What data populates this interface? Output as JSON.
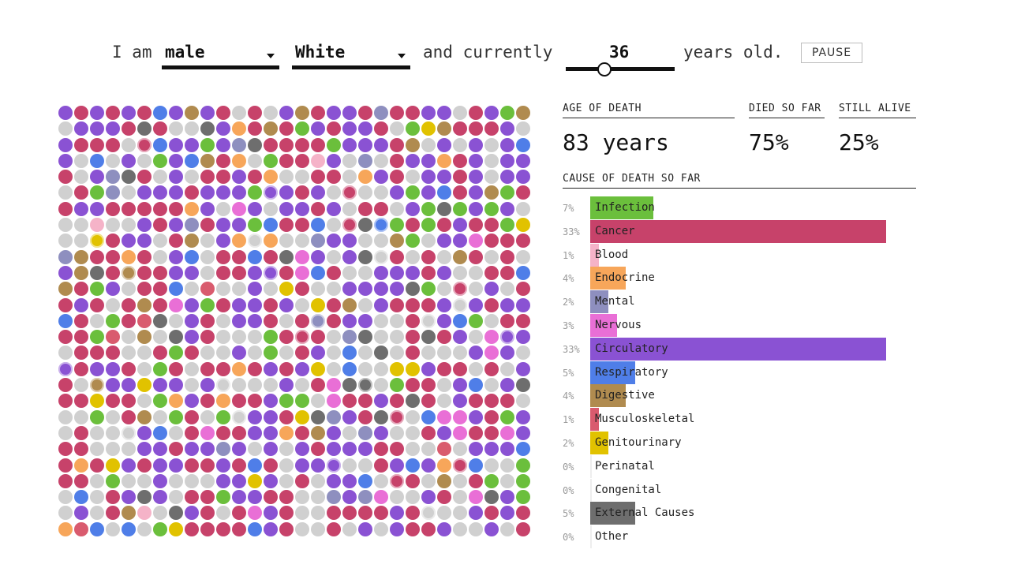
{
  "controls": {
    "prefix": "I am",
    "sex_value": "male",
    "race_value": "White",
    "middle_text": "and currently",
    "age_value": "36",
    "suffix": "years old.",
    "pause_label": "PAUSE",
    "age_slider_level": 0.36
  },
  "stats": {
    "age_of_death_label": "AGE OF DEATH",
    "age_of_death_value": "83 years",
    "died_label": "DIED SO FAR",
    "died_value": "75%",
    "alive_label": "STILL ALIVE",
    "alive_value": "25%"
  },
  "causes_title": "CAUSE OF DEATH SO FAR",
  "causes": [
    {
      "pct": 7,
      "pct_label": "7%",
      "label": "Infection",
      "color": "#6bbf3c"
    },
    {
      "pct": 33,
      "pct_label": "33%",
      "label": "Cancer",
      "color": "#c7426a"
    },
    {
      "pct": 1,
      "pct_label": "1%",
      "label": "Blood",
      "color": "#f5b3c8"
    },
    {
      "pct": 4,
      "pct_label": "4%",
      "label": "Endocrine",
      "color": "#f7a65a"
    },
    {
      "pct": 2,
      "pct_label": "2%",
      "label": "Mental",
      "color": "#8e8fbf"
    },
    {
      "pct": 3,
      "pct_label": "3%",
      "label": "Nervous",
      "color": "#e96fd6"
    },
    {
      "pct": 33,
      "pct_label": "33%",
      "label": "Circulatory",
      "color": "#8a52d3"
    },
    {
      "pct": 5,
      "pct_label": "5%",
      "label": "Respiratory",
      "color": "#4f7ee8"
    },
    {
      "pct": 4,
      "pct_label": "4%",
      "label": "Digestive",
      "color": "#b08b4f"
    },
    {
      "pct": 1,
      "pct_label": "1%",
      "label": "Musculoskeletal",
      "color": "#d95b6e"
    },
    {
      "pct": 2,
      "pct_label": "2%",
      "label": "Genitourinary",
      "color": "#e1c200"
    },
    {
      "pct": 0,
      "pct_label": "0%",
      "label": "Perinatal",
      "color": "#cccccc"
    },
    {
      "pct": 0,
      "pct_label": "0%",
      "label": "Congenital",
      "color": "#cccccc"
    },
    {
      "pct": 5,
      "pct_label": "5%",
      "label": "External Causes",
      "color": "#6e6e6e"
    },
    {
      "pct": 0,
      "pct_label": "0%",
      "label": "Other",
      "color": "#bbbbbb"
    }
  ],
  "alive_dot_color": "#d0d0d0"
}
